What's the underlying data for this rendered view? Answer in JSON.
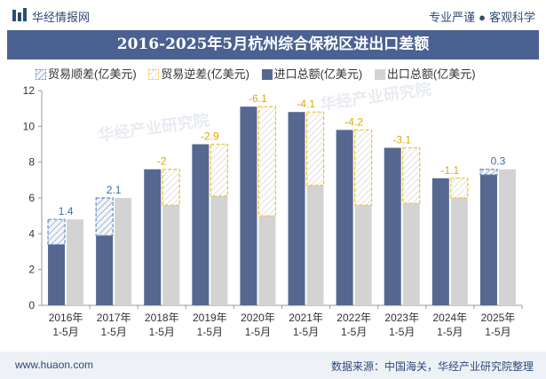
{
  "header": {
    "brand": "华经情报网",
    "tagline_left": "专业严谨",
    "tagline_right": "客观科学"
  },
  "footer": {
    "url": "www.huaon.com",
    "source": "数据来源：中国海关，华经产业研究院整理"
  },
  "colors": {
    "import": "#56688f",
    "export": "#d3d3d3",
    "surplus": "#6b8fbf",
    "deficit": "#f2c12e",
    "title_bg": "#4a6191"
  },
  "chart_data": {
    "type": "bar",
    "title": "2016-2025年5月杭州综合保税区进出口差额",
    "legend": [
      "贸易顺差(亿美元)",
      "贸易逆差(亿美元)",
      "进口总额(亿美元)",
      "出口总额(亿美元)"
    ],
    "categories": [
      [
        "2016年",
        "1-5月"
      ],
      [
        "2017年",
        "1-5月"
      ],
      [
        "2018年",
        "1-5月"
      ],
      [
        "2019年",
        "1-5月"
      ],
      [
        "2020年",
        "1-5月"
      ],
      [
        "2021年",
        "1-5月"
      ],
      [
        "2022年",
        "1-5月"
      ],
      [
        "2023年",
        "1-5月"
      ],
      [
        "2024年",
        "1-5月"
      ],
      [
        "2025年",
        "1-5月"
      ]
    ],
    "series": [
      {
        "name": "进口总额(亿美元)",
        "values": [
          3.4,
          3.9,
          7.6,
          9.0,
          11.1,
          10.8,
          9.8,
          8.8,
          7.1,
          7.3
        ]
      },
      {
        "name": "出口总额(亿美元)",
        "values": [
          4.8,
          6.0,
          5.6,
          6.1,
          5.0,
          6.7,
          5.6,
          5.7,
          6.0,
          7.6
        ]
      }
    ],
    "balance": [
      1.4,
      2.1,
      -2,
      -2.9,
      -6.1,
      -4.1,
      -4.2,
      -3.1,
      -1.1,
      0.3
    ],
    "balance_labels": [
      "1.4",
      "2.1",
      "-2",
      "-2.9",
      "-6.1",
      "-4.1",
      "-4.2",
      "-3.1",
      "-1.1",
      "0.3"
    ],
    "ylim": [
      0,
      12
    ],
    "yticks": [
      0,
      2,
      4,
      6,
      8,
      10,
      12
    ]
  }
}
